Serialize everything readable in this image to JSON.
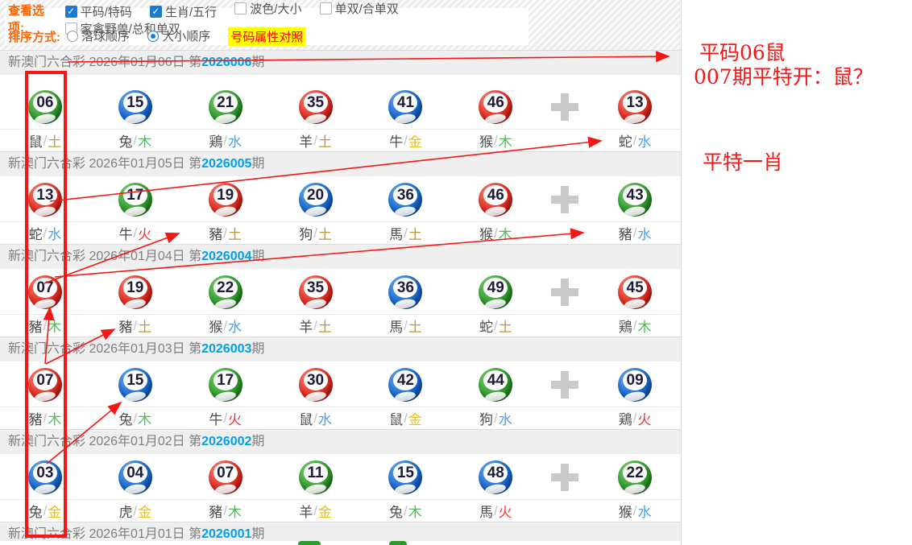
{
  "toolbar": {
    "view_label": "查看选项:",
    "checkboxes": [
      {
        "label": "平码/特码",
        "checked": true
      },
      {
        "label": "生肖/五行",
        "checked": true
      },
      {
        "label": "波色/大小",
        "checked": false
      },
      {
        "label": "单双/合单双",
        "checked": false
      },
      {
        "label": "家禽野兽/总和单双",
        "checked": false
      }
    ],
    "sort_label": "排序方式:",
    "radios": [
      {
        "label": "落球顺序",
        "selected": false
      },
      {
        "label": "大小顺序",
        "selected": true
      }
    ],
    "compare_link": "号码属性对照"
  },
  "lottery_name": "新澳门六合彩",
  "period_prefix": "第",
  "period_suffix": "期",
  "rows": [
    {
      "date": "2026年01月06日",
      "period": "2026006",
      "balls": [
        {
          "num": "06",
          "color": "green",
          "zodiac": "鼠",
          "element": "土"
        },
        {
          "num": "15",
          "color": "blue",
          "zodiac": "兔",
          "element": "木"
        },
        {
          "num": "21",
          "color": "green",
          "zodiac": "鶏",
          "element": "水"
        },
        {
          "num": "35",
          "color": "red",
          "zodiac": "羊",
          "element": "土"
        },
        {
          "num": "41",
          "color": "blue",
          "zodiac": "牛",
          "element": "金"
        },
        {
          "num": "46",
          "color": "red",
          "zodiac": "猴",
          "element": "木"
        },
        {
          "num": "13",
          "color": "red",
          "zodiac": "蛇",
          "element": "水"
        }
      ]
    },
    {
      "date": "2026年01月05日",
      "period": "2026005",
      "balls": [
        {
          "num": "13",
          "color": "red",
          "zodiac": "蛇",
          "element": "水"
        },
        {
          "num": "17",
          "color": "green",
          "zodiac": "牛",
          "element": "火"
        },
        {
          "num": "19",
          "color": "red",
          "zodiac": "豬",
          "element": "土"
        },
        {
          "num": "20",
          "color": "blue",
          "zodiac": "狗",
          "element": "土"
        },
        {
          "num": "36",
          "color": "blue",
          "zodiac": "馬",
          "element": "土"
        },
        {
          "num": "46",
          "color": "red",
          "zodiac": "猴",
          "element": "木"
        },
        {
          "num": "43",
          "color": "green",
          "zodiac": "豬",
          "element": "水"
        }
      ]
    },
    {
      "date": "2026年01月04日",
      "period": "2026004",
      "balls": [
        {
          "num": "07",
          "color": "red",
          "zodiac": "豬",
          "element": "木"
        },
        {
          "num": "19",
          "color": "red",
          "zodiac": "豬",
          "element": "土"
        },
        {
          "num": "22",
          "color": "green",
          "zodiac": "猴",
          "element": "水"
        },
        {
          "num": "35",
          "color": "red",
          "zodiac": "羊",
          "element": "土"
        },
        {
          "num": "36",
          "color": "blue",
          "zodiac": "馬",
          "element": "土"
        },
        {
          "num": "49",
          "color": "green",
          "zodiac": "蛇",
          "element": "土"
        },
        {
          "num": "45",
          "color": "red",
          "zodiac": "鶏",
          "element": "木"
        }
      ]
    },
    {
      "date": "2026年01月03日",
      "period": "2026003",
      "balls": [
        {
          "num": "07",
          "color": "red",
          "zodiac": "豬",
          "element": "木"
        },
        {
          "num": "15",
          "color": "blue",
          "zodiac": "兔",
          "element": "木"
        },
        {
          "num": "17",
          "color": "green",
          "zodiac": "牛",
          "element": "火"
        },
        {
          "num": "30",
          "color": "red",
          "zodiac": "鼠",
          "element": "水"
        },
        {
          "num": "42",
          "color": "blue",
          "zodiac": "鼠",
          "element": "金"
        },
        {
          "num": "44",
          "color": "green",
          "zodiac": "狗",
          "element": "水"
        },
        {
          "num": "09",
          "color": "blue",
          "zodiac": "鶏",
          "element": "火"
        }
      ]
    },
    {
      "date": "2026年01月02日",
      "period": "2026002",
      "balls": [
        {
          "num": "03",
          "color": "blue",
          "zodiac": "兔",
          "element": "金"
        },
        {
          "num": "04",
          "color": "blue",
          "zodiac": "虎",
          "element": "金"
        },
        {
          "num": "07",
          "color": "red",
          "zodiac": "豬",
          "element": "木"
        },
        {
          "num": "11",
          "color": "green",
          "zodiac": "羊",
          "element": "金"
        },
        {
          "num": "15",
          "color": "blue",
          "zodiac": "兔",
          "element": "木"
        },
        {
          "num": "48",
          "color": "blue",
          "zodiac": "馬",
          "element": "火"
        },
        {
          "num": "22",
          "color": "green",
          "zodiac": "猴",
          "element": "水"
        }
      ]
    },
    {
      "date": "2026年01月01日",
      "period": "2026001",
      "balls": []
    }
  ],
  "element_colors": {
    "土": "#c8962e",
    "金": "#ecc115",
    "木": "#4fbe58",
    "水": "#4d9ef2",
    "火": "#f03535"
  },
  "ball_colors": {
    "red": "#e02b20",
    "blue": "#1668cc",
    "green": "#2d9b2a"
  },
  "annotations": {
    "color": "#f51616",
    "note1": "平码06鼠",
    "note2": "007期平特开：鼠？",
    "note3": "平特一肖"
  }
}
